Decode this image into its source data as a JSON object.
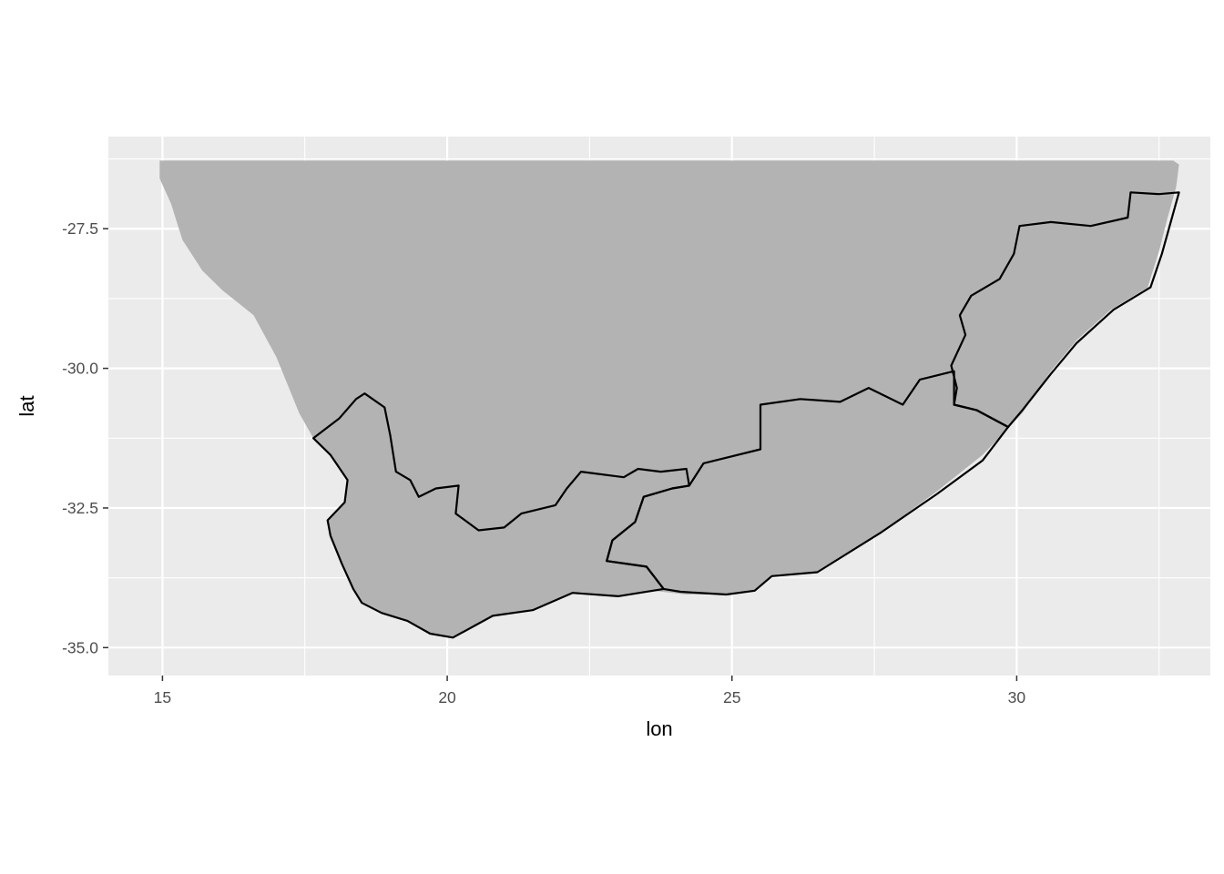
{
  "chart_data": {
    "type": "map",
    "xlabel": "lon",
    "ylabel": "lat",
    "xlim": [
      14.05,
      33.4
    ],
    "ylim": [
      -35.5,
      -25.85
    ],
    "x_ticks": [
      15,
      20,
      25,
      30
    ],
    "x_tick_labels": [
      "15",
      "20",
      "25",
      "30"
    ],
    "y_ticks": [
      -27.5,
      -30.0,
      -32.5,
      -35.0
    ],
    "y_tick_labels": [
      "-27.5",
      "-30.0",
      "-32.5",
      "-35.0"
    ],
    "x_minor_grid": [
      17.5,
      22.5,
      27.5,
      32.5
    ],
    "y_minor_grid": [
      -26.25,
      -28.75,
      -31.25,
      -33.75
    ],
    "grid": true,
    "colors": {
      "panel_background": "#ebebeb",
      "grid": "#ffffff",
      "land_fill": "#b3b3b3",
      "province_border": "#000000"
    },
    "land": {
      "name": "",
      "points": [
        [
          14.95,
          -26.28
        ],
        [
          32.75,
          -26.28
        ],
        [
          32.85,
          -26.35
        ],
        [
          32.8,
          -26.75
        ],
        [
          32.65,
          -27.3
        ],
        [
          32.5,
          -27.9
        ],
        [
          32.3,
          -28.55
        ],
        [
          31.65,
          -28.95
        ],
        [
          31.05,
          -29.5
        ],
        [
          30.6,
          -30.05
        ],
        [
          30.1,
          -30.8
        ],
        [
          29.4,
          -31.55
        ],
        [
          28.6,
          -32.2
        ],
        [
          27.6,
          -32.95
        ],
        [
          26.5,
          -33.65
        ],
        [
          25.7,
          -33.72
        ],
        [
          25.4,
          -33.98
        ],
        [
          24.9,
          -34.05
        ],
        [
          24.2,
          -34.05
        ],
        [
          23.6,
          -33.98
        ],
        [
          23.0,
          -34.08
        ],
        [
          22.2,
          -34.02
        ],
        [
          21.5,
          -34.33
        ],
        [
          20.8,
          -34.43
        ],
        [
          20.1,
          -34.82
        ],
        [
          19.7,
          -34.75
        ],
        [
          19.3,
          -34.52
        ],
        [
          18.85,
          -34.38
        ],
        [
          18.5,
          -34.2
        ],
        [
          18.35,
          -33.95
        ],
        [
          18.15,
          -33.5
        ],
        [
          17.95,
          -33.0
        ],
        [
          17.9,
          -32.72
        ],
        [
          18.2,
          -32.4
        ],
        [
          18.25,
          -32.0
        ],
        [
          17.95,
          -31.55
        ],
        [
          17.65,
          -31.25
        ],
        [
          17.4,
          -30.8
        ],
        [
          17.2,
          -30.3
        ],
        [
          17.0,
          -29.8
        ],
        [
          16.6,
          -29.05
        ],
        [
          16.05,
          -28.6
        ],
        [
          15.7,
          -28.25
        ],
        [
          15.35,
          -27.7
        ],
        [
          15.15,
          -27.05
        ],
        [
          14.95,
          -26.6
        ]
      ]
    },
    "provinces": [
      {
        "name": "",
        "points": [
          [
            32.85,
            -26.85
          ],
          [
            32.7,
            -27.4
          ],
          [
            32.55,
            -27.95
          ],
          [
            32.35,
            -28.55
          ],
          [
            31.7,
            -28.95
          ],
          [
            31.05,
            -29.55
          ],
          [
            30.6,
            -30.1
          ],
          [
            30.1,
            -30.75
          ],
          [
            29.85,
            -31.05
          ],
          [
            29.3,
            -30.75
          ],
          [
            28.9,
            -30.65
          ],
          [
            28.95,
            -30.35
          ],
          [
            28.85,
            -29.95
          ],
          [
            29.1,
            -29.4
          ],
          [
            29.0,
            -29.05
          ],
          [
            29.2,
            -28.7
          ],
          [
            29.7,
            -28.4
          ],
          [
            29.95,
            -27.95
          ],
          [
            30.05,
            -27.45
          ],
          [
            30.6,
            -27.38
          ],
          [
            31.3,
            -27.45
          ],
          [
            31.95,
            -27.3
          ],
          [
            32.0,
            -26.85
          ],
          [
            32.5,
            -26.88
          ]
        ]
      },
      {
        "name": "",
        "points": [
          [
            29.85,
            -31.05
          ],
          [
            29.4,
            -31.65
          ],
          [
            28.6,
            -32.25
          ],
          [
            27.6,
            -32.95
          ],
          [
            26.5,
            -33.65
          ],
          [
            25.7,
            -33.72
          ],
          [
            25.4,
            -33.98
          ],
          [
            24.9,
            -34.05
          ],
          [
            24.1,
            -34.0
          ],
          [
            23.8,
            -33.95
          ],
          [
            23.5,
            -33.55
          ],
          [
            22.8,
            -33.45
          ],
          [
            22.9,
            -33.08
          ],
          [
            23.3,
            -32.75
          ],
          [
            23.45,
            -32.3
          ],
          [
            23.95,
            -32.15
          ],
          [
            24.25,
            -32.1
          ],
          [
            24.5,
            -31.7
          ],
          [
            25.5,
            -31.45
          ],
          [
            25.5,
            -30.65
          ],
          [
            26.2,
            -30.55
          ],
          [
            26.9,
            -30.6
          ],
          [
            27.4,
            -30.35
          ],
          [
            28.0,
            -30.65
          ],
          [
            28.3,
            -30.2
          ],
          [
            28.9,
            -30.05
          ],
          [
            28.9,
            -30.65
          ],
          [
            29.3,
            -30.75
          ]
        ]
      },
      {
        "name": "",
        "points": [
          [
            24.25,
            -32.1
          ],
          [
            23.95,
            -32.15
          ],
          [
            23.45,
            -32.3
          ],
          [
            23.3,
            -32.75
          ],
          [
            22.9,
            -33.08
          ],
          [
            22.8,
            -33.45
          ],
          [
            23.5,
            -33.55
          ],
          [
            23.8,
            -33.95
          ],
          [
            23.0,
            -34.08
          ],
          [
            22.2,
            -34.02
          ],
          [
            21.5,
            -34.33
          ],
          [
            20.8,
            -34.43
          ],
          [
            20.1,
            -34.82
          ],
          [
            19.7,
            -34.75
          ],
          [
            19.3,
            -34.52
          ],
          [
            18.85,
            -34.38
          ],
          [
            18.5,
            -34.2
          ],
          [
            18.35,
            -33.95
          ],
          [
            18.15,
            -33.5
          ],
          [
            17.95,
            -33.0
          ],
          [
            17.9,
            -32.72
          ],
          [
            18.2,
            -32.4
          ],
          [
            18.25,
            -32.0
          ],
          [
            17.95,
            -31.55
          ],
          [
            17.65,
            -31.25
          ],
          [
            18.1,
            -30.9
          ],
          [
            18.4,
            -30.55
          ],
          [
            18.55,
            -30.45
          ],
          [
            18.9,
            -30.7
          ],
          [
            19.0,
            -31.2
          ],
          [
            19.1,
            -31.85
          ],
          [
            19.35,
            -32.0
          ],
          [
            19.5,
            -32.3
          ],
          [
            19.8,
            -32.15
          ],
          [
            20.2,
            -32.1
          ],
          [
            20.15,
            -32.6
          ],
          [
            20.55,
            -32.9
          ],
          [
            21.0,
            -32.85
          ],
          [
            21.3,
            -32.6
          ],
          [
            21.9,
            -32.45
          ],
          [
            22.1,
            -32.15
          ],
          [
            22.35,
            -31.85
          ],
          [
            23.1,
            -31.95
          ],
          [
            23.35,
            -31.8
          ],
          [
            23.75,
            -31.85
          ],
          [
            24.2,
            -31.8
          ]
        ]
      }
    ]
  }
}
